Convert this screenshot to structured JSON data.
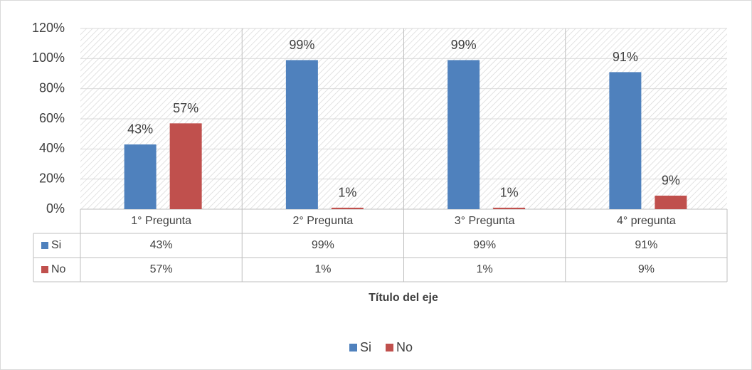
{
  "chart_data": {
    "type": "bar",
    "categories": [
      "1° Pregunta",
      "2° Pregunta",
      "3° Pregunta",
      "4° pregunta"
    ],
    "series": [
      {
        "name": "Si",
        "color": "#4f81bd",
        "values": [
          43,
          99,
          99,
          91
        ],
        "value_labels": [
          "43%",
          "99%",
          "99%",
          "91%"
        ]
      },
      {
        "name": "No",
        "color": "#c0504d",
        "values": [
          57,
          1,
          1,
          9
        ],
        "value_labels": [
          "57%",
          "1%",
          "1%",
          "9%"
        ]
      }
    ],
    "x_label": "Título del eje",
    "ylim": [
      0,
      120
    ],
    "yticks": [
      {
        "value": 0,
        "label": "0%"
      },
      {
        "value": 20,
        "label": "20%"
      },
      {
        "value": 40,
        "label": "40%"
      },
      {
        "value": 60,
        "label": "60%"
      },
      {
        "value": 80,
        "label": "80%"
      },
      {
        "value": 100,
        "label": "100%"
      },
      {
        "value": 120,
        "label": "120%"
      }
    ],
    "grid": true,
    "legend": "bottom",
    "data_table": true
  }
}
